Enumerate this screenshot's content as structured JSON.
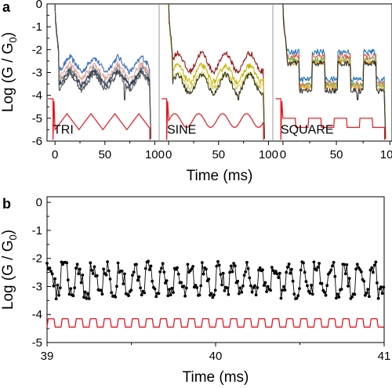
{
  "colors": {
    "axis": "#000000",
    "drive": "#e8141e",
    "divider": "#9a9a9a"
  },
  "panel_labels": {
    "a": "a",
    "b": "b"
  },
  "chart_data": [
    {
      "id": "a",
      "type": "line",
      "ylabel_main": "Log (G / G",
      "ylabel_sub": "0",
      "ylabel_close": ")",
      "xlabel": "Time (ms)",
      "ylim": [
        -6,
        0
      ],
      "yticks": [
        0,
        -1,
        -2,
        -3,
        -4,
        -5,
        -6
      ],
      "grid": false,
      "subplots": [
        {
          "name": "TRI",
          "label": "TRI",
          "xlim": [
            -8,
            102
          ],
          "xticks": [
            0,
            50,
            100
          ],
          "waveform": "triangle",
          "period_ms": 24,
          "drive": {
            "pre_level": -4.15,
            "base": -5.15,
            "amp": 0.35
          },
          "series": [
            {
              "color": "#3d6fbf",
              "mean": -2.65,
              "amp": 0.35
            },
            {
              "color": "#e8a89a",
              "mean": -2.95,
              "amp": 0.35
            },
            {
              "color": "#8a8a8a",
              "mean": -3.15,
              "amp": 0.4
            },
            {
              "color": "#2a3a5a",
              "mean": -3.25,
              "amp": 0.35
            },
            {
              "color": "#555555",
              "mean": -3.4,
              "amp": 0.4
            }
          ]
        },
        {
          "name": "SINE",
          "label": "SINE",
          "xlim": [
            -8,
            102
          ],
          "xticks": [
            0,
            50,
            100
          ],
          "waveform": "sine",
          "period_ms": 24,
          "drive": {
            "pre_level": -4.15,
            "base": -5.1,
            "amp": 0.3
          },
          "series": [
            {
              "color": "#9b1b1b",
              "mean": -2.55,
              "amp": 0.4
            },
            {
              "color": "#c9b400",
              "mean": -3.05,
              "amp": 0.35
            },
            {
              "color": "#d8d060",
              "mean": -3.35,
              "amp": 0.3
            },
            {
              "color": "#3a3a1a",
              "mean": -3.5,
              "amp": 0.4
            }
          ]
        },
        {
          "name": "SQUARE",
          "label": "SQUARE",
          "xlim": [
            -8,
            102
          ],
          "xticks": [
            0,
            50,
            100
          ],
          "waveform": "square",
          "period_ms": 24,
          "drive": {
            "pre_level": -4.15,
            "base": -5.2,
            "amp": 0.2
          },
          "series": [
            {
              "color": "#1f77b4",
              "mean": -2.7,
              "amp": 0.6
            },
            {
              "color": "#e85a4f",
              "mean": -2.9,
              "amp": 0.6
            },
            {
              "color": "#6fb84a",
              "mean": -3.0,
              "amp": 0.55
            },
            {
              "color": "#f0a030",
              "mean": -3.1,
              "amp": 0.55
            },
            {
              "color": "#333333",
              "mean": -3.2,
              "amp": 0.6
            }
          ]
        }
      ]
    },
    {
      "id": "b",
      "type": "line",
      "ylabel_main": "Log (G / G",
      "ylabel_sub": "0",
      "ylabel_close": ")",
      "xlabel": "Time (ms)",
      "xlim": [
        39,
        41
      ],
      "xticks": [
        39,
        40,
        41
      ],
      "ylim": [
        -5,
        0.2
      ],
      "yticks": [
        0,
        -1,
        -2,
        -3,
        -4,
        -5
      ],
      "grid": false,
      "waveform": "square",
      "period_ms": 0.0833,
      "data_series": {
        "color": "#000000",
        "high": -2.35,
        "low": -3.2
      },
      "drive": {
        "color": "#e8141e",
        "high": -4.15,
        "low": -4.45
      }
    }
  ]
}
